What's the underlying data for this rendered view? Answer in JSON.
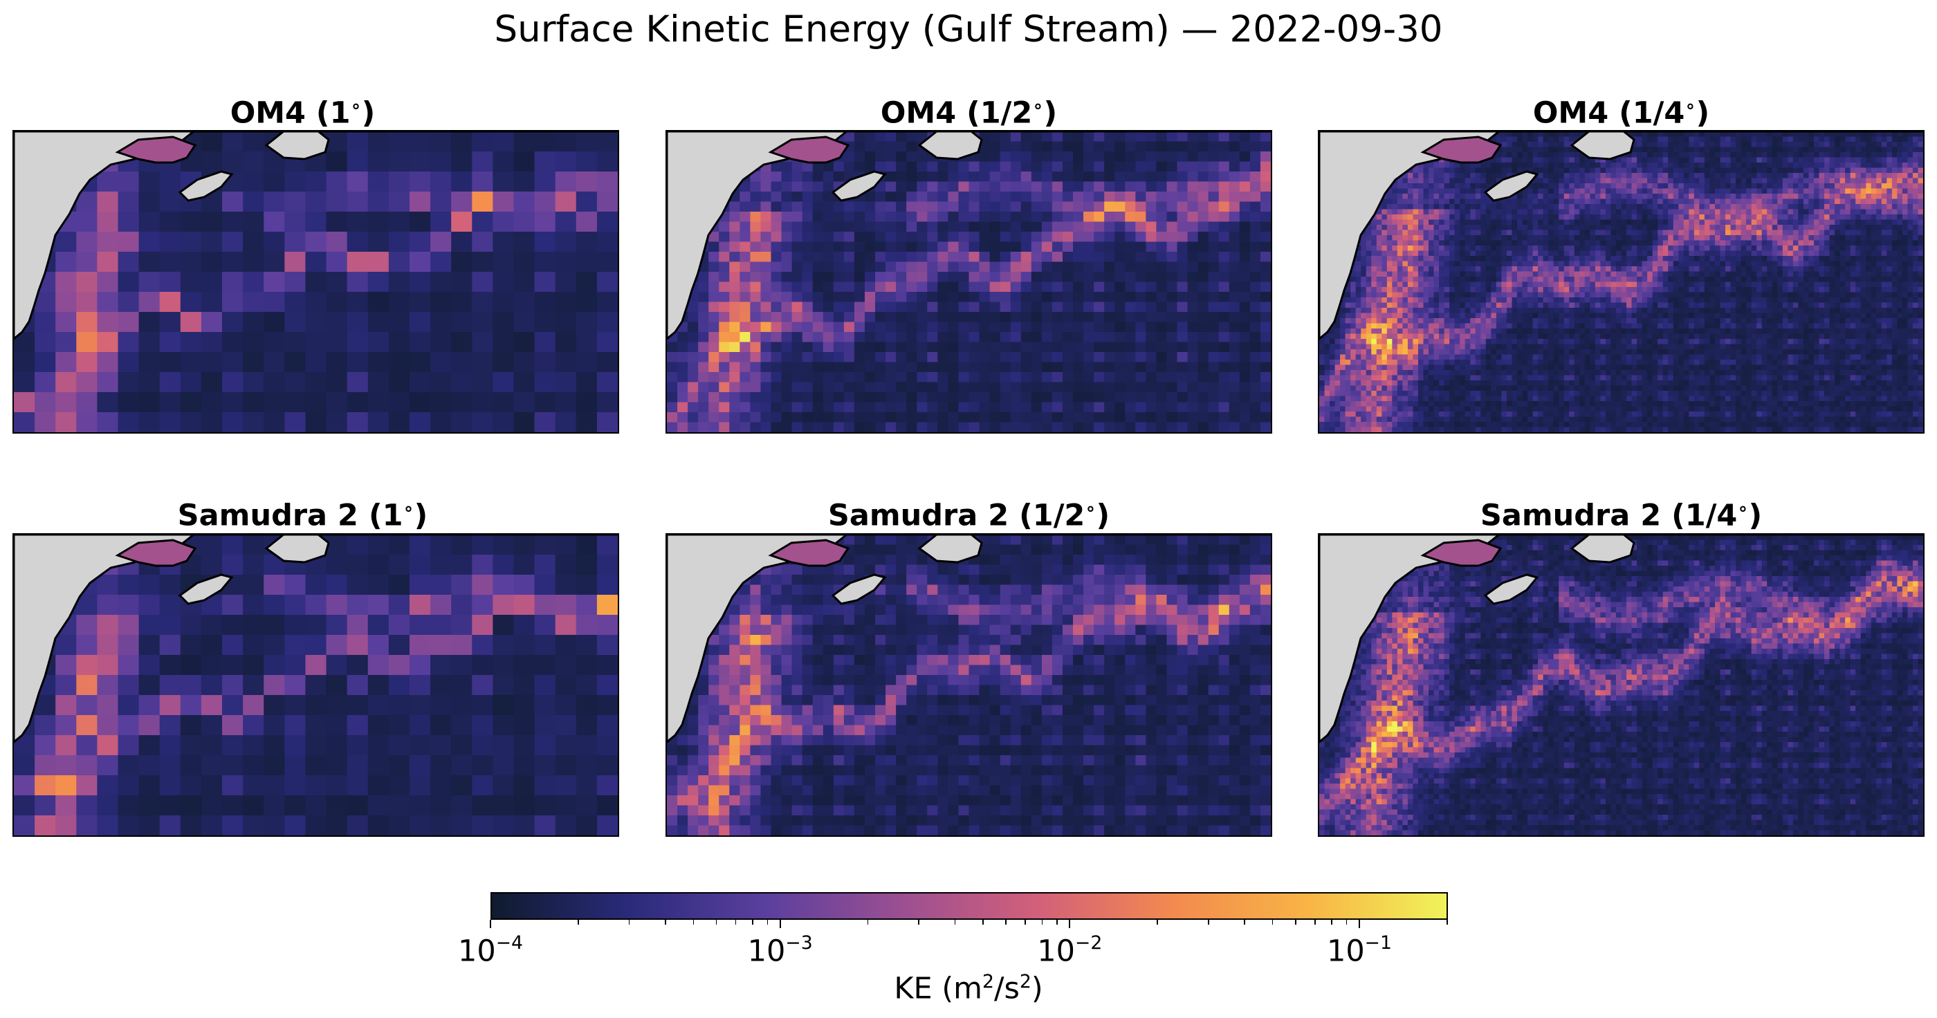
{
  "title": "Surface Kinetic Energy (Gulf Stream) — 2022-09-30",
  "chart_data": {
    "type": "heatmap",
    "title": "Surface Kinetic Energy (Gulf Stream) — 2022-09-30",
    "colormap": "plasma-like (dark navy → purple → orange → yellow)",
    "colors": {
      "cmap_stops": [
        "#0f1b2e",
        "#2a2a7a",
        "#5a3f9e",
        "#9b4f92",
        "#d2607a",
        "#f38a4f",
        "#f8b545",
        "#f0f35a"
      ],
      "land": "#d3d3d3",
      "coast": "#000000",
      "frame": "#000000"
    },
    "colorbar": {
      "scale": "log",
      "range": [
        0.0001,
        0.2
      ],
      "ticks": [
        {
          "base": "10",
          "exp": "−4",
          "value": 0.0001
        },
        {
          "base": "10",
          "exp": "−3",
          "value": 0.001
        },
        {
          "base": "10",
          "exp": "−2",
          "value": 0.01
        },
        {
          "base": "10",
          "exp": "−1",
          "value": 0.1
        }
      ],
      "label": "KE",
      "unit": "m",
      "unit_exp": "2",
      "unit_den": "/s",
      "unit_den_exp": "2"
    },
    "panels": [
      {
        "model": "OM4",
        "resolution": "1",
        "cell_count": [
          29,
          15
        ]
      },
      {
        "model": "OM4",
        "resolution": "1/2",
        "cell_count": [
          58,
          30
        ]
      },
      {
        "model": "OM4",
        "resolution": "1/4",
        "cell_count": [
          116,
          58
        ]
      },
      {
        "model": "Samudra 2",
        "resolution": "1",
        "cell_count": [
          29,
          15
        ]
      },
      {
        "model": "Samudra 2",
        "resolution": "1/2",
        "cell_count": [
          58,
          30
        ]
      },
      {
        "model": "Samudra 2",
        "resolution": "1/4",
        "cell_count": [
          116,
          58
        ]
      }
    ],
    "panel_titles": [
      "OM4 (1",
      "OM4 (1/2",
      "OM4 (1/4",
      "Samudra 2 (1",
      "Samudra 2 (1/2",
      "Samudra 2 (1/4"
    ],
    "degree_symbol": "∘",
    "close_paren": ")"
  }
}
